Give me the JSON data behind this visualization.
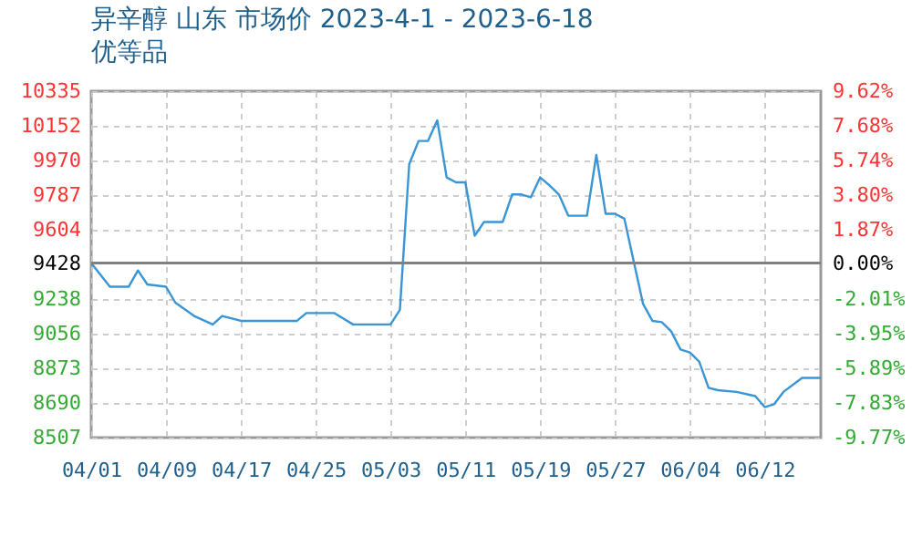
{
  "chart_data": {
    "type": "line",
    "title": "异辛醇 山东 市场价 2023-4-1 - 2023-6-18",
    "subtitle": "优等品",
    "x": [
      "2023-04-01",
      "2023-04-03",
      "2023-04-05",
      "2023-04-06",
      "2023-04-07",
      "2023-04-09",
      "2023-04-10",
      "2023-04-12",
      "2023-04-14",
      "2023-04-15",
      "2023-04-17",
      "2023-04-23",
      "2023-04-24",
      "2023-04-27",
      "2023-04-29",
      "2023-05-03",
      "2023-05-04",
      "2023-05-05",
      "2023-05-06",
      "2023-05-07",
      "2023-05-08",
      "2023-05-09",
      "2023-05-10",
      "2023-05-11",
      "2023-05-12",
      "2023-05-13",
      "2023-05-15",
      "2023-05-16",
      "2023-05-17",
      "2023-05-18",
      "2023-05-19",
      "2023-05-20",
      "2023-05-21",
      "2023-05-22",
      "2023-05-24",
      "2023-05-25",
      "2023-05-26",
      "2023-05-27",
      "2023-05-28",
      "2023-05-29",
      "2023-05-30",
      "2023-05-31",
      "2023-06-01",
      "2023-06-02",
      "2023-06-03",
      "2023-06-04",
      "2023-06-05",
      "2023-06-06",
      "2023-06-07",
      "2023-06-09",
      "2023-06-11",
      "2023-06-12",
      "2023-06-13",
      "2023-06-14",
      "2023-06-16",
      "2023-06-18"
    ],
    "series": [
      {
        "color": "#3a95d5",
        "values": [
          9428,
          9303,
          9303,
          9389,
          9315,
          9303,
          9219,
          9149,
          9104,
          9149,
          9123,
          9123,
          9164,
          9164,
          9104,
          9104,
          9181,
          9950,
          10072,
          10072,
          10181,
          9880,
          9854,
          9854,
          9572,
          9645,
          9645,
          9790,
          9790,
          9775,
          9880,
          9838,
          9790,
          9678,
          9678,
          9998,
          9688,
          9688,
          9662,
          9437,
          9212,
          9123,
          9116,
          9068,
          8972,
          8956,
          8908,
          8770,
          8757,
          8748,
          8726,
          8668,
          8683,
          8748,
          8822,
          8822
        ]
      }
    ],
    "xlim": [
      "2023-04-01",
      "2023-06-18"
    ],
    "xticks": [
      {
        "value": "2023-04-01",
        "label": "04/01"
      },
      {
        "value": "2023-04-09",
        "label": "04/09"
      },
      {
        "value": "2023-04-17",
        "label": "04/17"
      },
      {
        "value": "2023-04-25",
        "label": "04/25"
      },
      {
        "value": "2023-05-03",
        "label": "05/03"
      },
      {
        "value": "2023-05-11",
        "label": "05/11"
      },
      {
        "value": "2023-05-19",
        "label": "05/19"
      },
      {
        "value": "2023-05-27",
        "label": "05/27"
      },
      {
        "value": "2023-06-04",
        "label": "06/04"
      },
      {
        "value": "2023-06-12",
        "label": "06/12"
      }
    ],
    "ylim": [
      8507,
      10335
    ],
    "yticks": [
      8507,
      8690,
      8873,
      9056,
      9238,
      9428,
      9604,
      9787,
      9970,
      10152,
      10335
    ],
    "y2lim": [
      -9.77,
      9.62
    ],
    "y2ticks": [
      {
        "value": -9.77,
        "label": "-9.77%"
      },
      {
        "value": -7.83,
        "label": "-7.83%"
      },
      {
        "value": -5.89,
        "label": "-5.89%"
      },
      {
        "value": -3.95,
        "label": "-3.95%"
      },
      {
        "value": -2.01,
        "label": "-2.01%"
      },
      {
        "value": 0,
        "label": "0.00%"
      },
      {
        "value": 1.87,
        "label": "1.87%"
      },
      {
        "value": 3.8,
        "label": "3.80%"
      },
      {
        "value": 5.74,
        "label": "5.74%"
      },
      {
        "value": 7.68,
        "label": "7.68%"
      },
      {
        "value": 9.62,
        "label": "9.62%"
      }
    ],
    "ref_lines": [
      {
        "axis": "y",
        "value": 9428,
        "color": "#808080"
      }
    ],
    "grid": true
  }
}
